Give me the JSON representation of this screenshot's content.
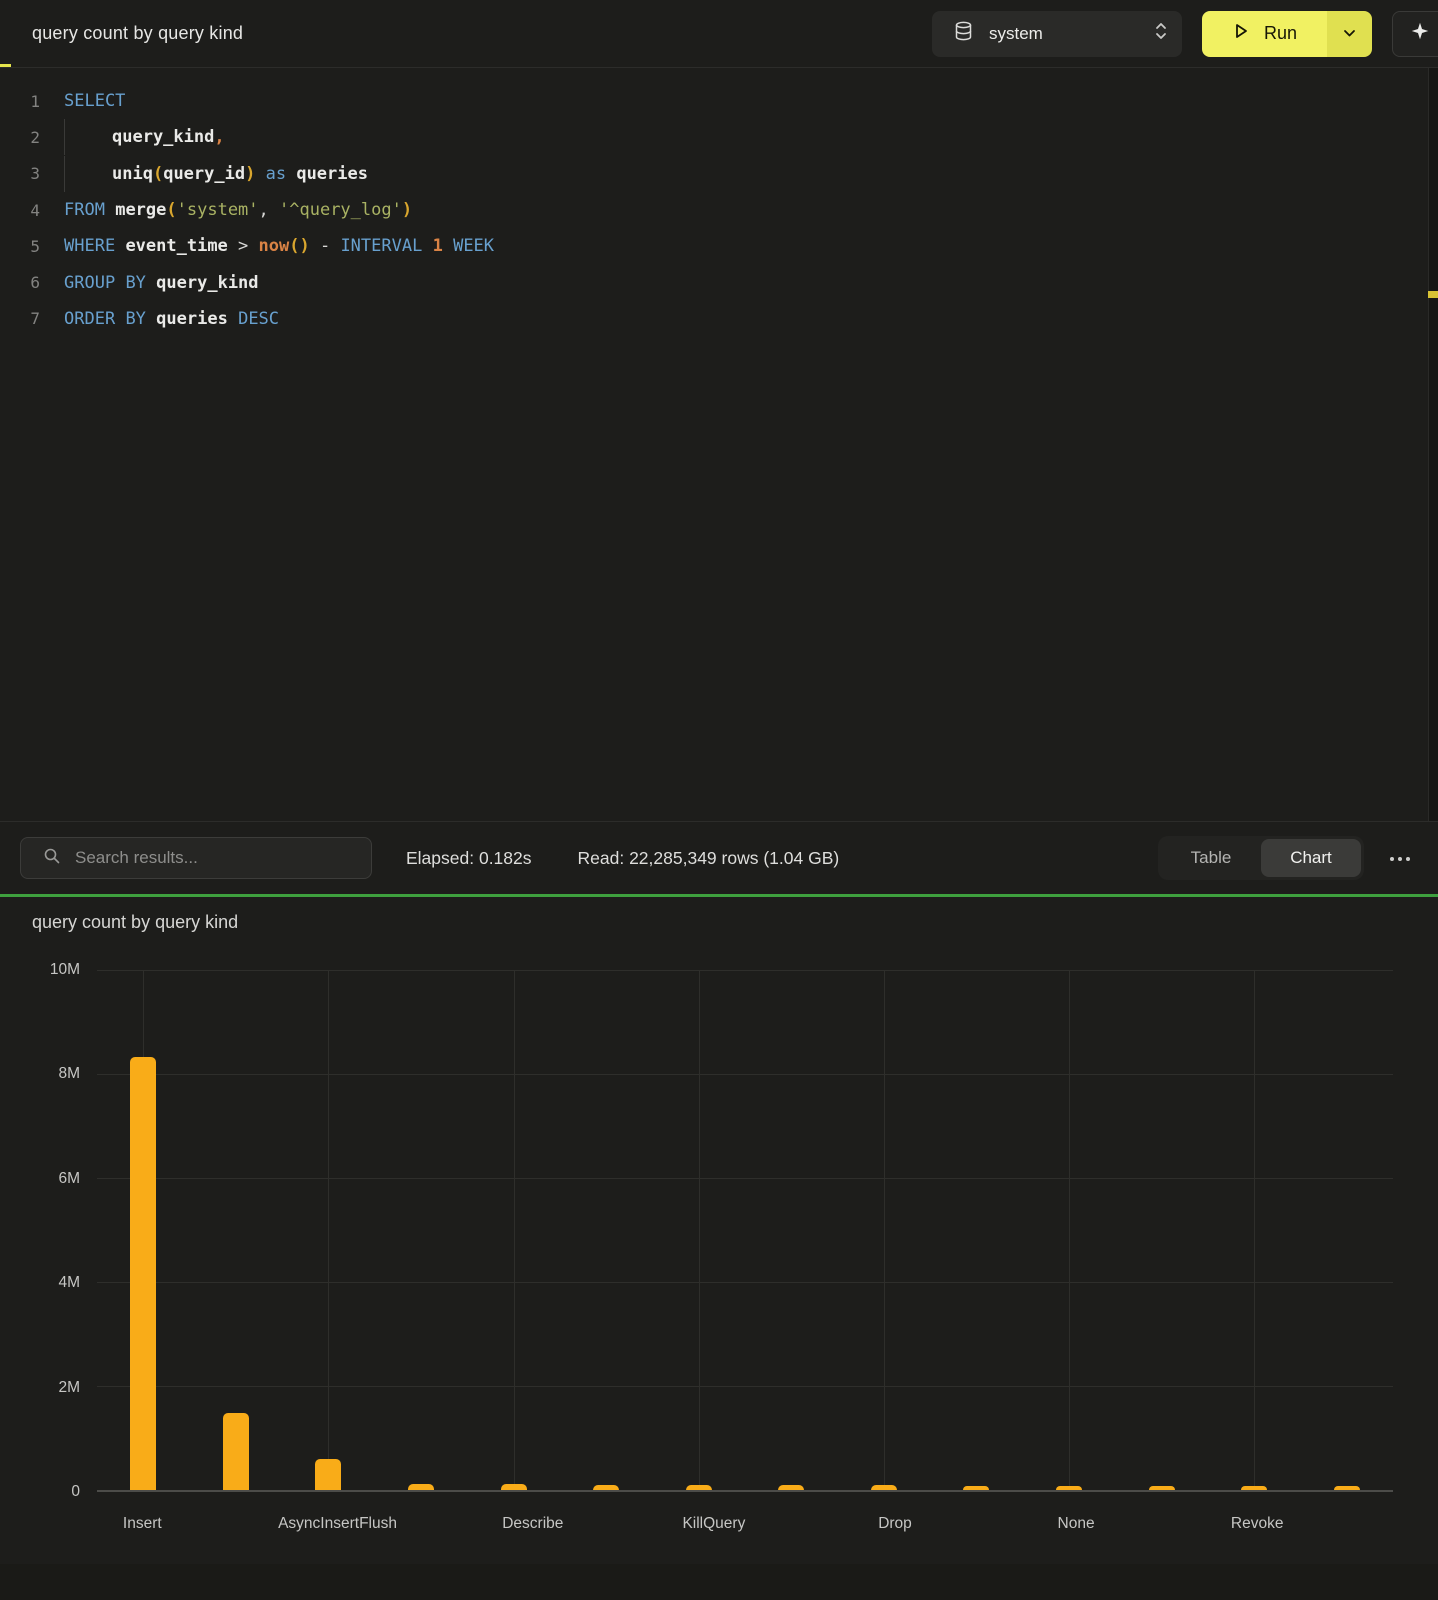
{
  "topbar": {
    "title": "query count by query kind",
    "database_selector": {
      "value": "system"
    },
    "run_button": {
      "label": "Run"
    }
  },
  "editor": {
    "lines": [
      {
        "num": "1",
        "tokens": [
          {
            "t": "SELECT",
            "c": "kw"
          }
        ]
      },
      {
        "num": "2",
        "tokens": [
          {
            "t": "",
            "c": "ind"
          },
          {
            "t": "query_kind",
            "c": "id"
          },
          {
            "t": ",",
            "c": "num"
          }
        ]
      },
      {
        "num": "3",
        "tokens": [
          {
            "t": "",
            "c": "ind"
          },
          {
            "t": "uniq",
            "c": "id"
          },
          {
            "t": "(",
            "c": "gold"
          },
          {
            "t": "query_id",
            "c": "id"
          },
          {
            "t": ")",
            "c": "gold"
          },
          {
            "t": " ",
            "c": "plain"
          },
          {
            "t": "as",
            "c": "kw"
          },
          {
            "t": " ",
            "c": "plain"
          },
          {
            "t": "queries",
            "c": "id"
          }
        ]
      },
      {
        "num": "4",
        "tokens": [
          {
            "t": "FROM",
            "c": "kw"
          },
          {
            "t": " ",
            "c": "plain"
          },
          {
            "t": "merge",
            "c": "id"
          },
          {
            "t": "(",
            "c": "gold"
          },
          {
            "t": "'system'",
            "c": "str"
          },
          {
            "t": ", ",
            "c": "plain"
          },
          {
            "t": "'^query_log'",
            "c": "str"
          },
          {
            "t": ")",
            "c": "gold"
          }
        ]
      },
      {
        "num": "5",
        "tokens": [
          {
            "t": "WHERE",
            "c": "kw"
          },
          {
            "t": " ",
            "c": "plain"
          },
          {
            "t": "event_time",
            "c": "id"
          },
          {
            "t": " > ",
            "c": "plain"
          },
          {
            "t": "now",
            "c": "num"
          },
          {
            "t": "()",
            "c": "gold"
          },
          {
            "t": " - ",
            "c": "plain"
          },
          {
            "t": "INTERVAL",
            "c": "kw"
          },
          {
            "t": " ",
            "c": "plain"
          },
          {
            "t": "1",
            "c": "num"
          },
          {
            "t": " ",
            "c": "plain"
          },
          {
            "t": "WEEK",
            "c": "kw"
          }
        ]
      },
      {
        "num": "6",
        "tokens": [
          {
            "t": "GROUP",
            "c": "kw"
          },
          {
            "t": " ",
            "c": "plain"
          },
          {
            "t": "BY",
            "c": "kw"
          },
          {
            "t": " ",
            "c": "plain"
          },
          {
            "t": "query_kind",
            "c": "id"
          }
        ]
      },
      {
        "num": "7",
        "tokens": [
          {
            "t": "ORDER",
            "c": "kw"
          },
          {
            "t": " ",
            "c": "plain"
          },
          {
            "t": "BY",
            "c": "kw"
          },
          {
            "t": " ",
            "c": "plain"
          },
          {
            "t": "queries",
            "c": "id"
          },
          {
            "t": " ",
            "c": "plain"
          },
          {
            "t": "DESC",
            "c": "kw"
          }
        ]
      }
    ]
  },
  "results_toolbar": {
    "search_placeholder": "Search results...",
    "elapsed_label": "Elapsed: 0.182s",
    "read_label": "Read: 22,285,349 rows (1.04 GB)",
    "view_toggle": {
      "options": [
        "Table",
        "Chart"
      ],
      "active": "Chart"
    }
  },
  "chart_data": {
    "type": "bar",
    "title": "query count by query kind",
    "categories": [
      "Insert",
      "",
      "AsyncInsertFlush",
      "",
      "Describe",
      "",
      "KillQuery",
      "",
      "Drop",
      "",
      "None",
      "",
      "Revoke",
      ""
    ],
    "visible_category_labels": [
      "Insert",
      "AsyncInsertFlush",
      "Describe",
      "KillQuery",
      "Drop",
      "None",
      "Revoke"
    ],
    "values": [
      8320000,
      1480000,
      600000,
      120000,
      110000,
      105000,
      100000,
      95000,
      90000,
      85000,
      80000,
      78000,
      75000,
      72000
    ],
    "ylabels": [
      "10M",
      "8M",
      "6M",
      "4M",
      "2M",
      "0"
    ],
    "ylim": [
      0,
      10000000
    ],
    "xlabel": "",
    "ylabel": "",
    "grid": true,
    "legend": "none",
    "label_every": 2
  },
  "colors": {
    "bar": "#F9AC18",
    "run_button": "#F1F162",
    "run_button_secondary": "#E0E050",
    "divider_green": "#3EA03E",
    "keyword": "#68A0CE",
    "string": "#A9B263",
    "bracket": "#D9A62E",
    "number": "#DA8345",
    "identifier": "#EAEAE8"
  }
}
